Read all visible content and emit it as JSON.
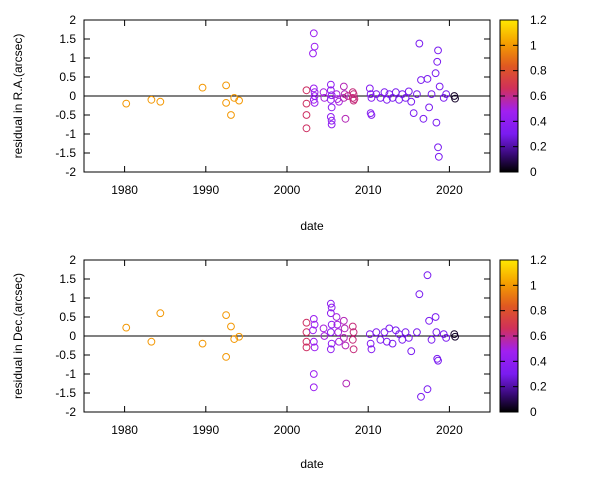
{
  "chart_data": [
    {
      "type": "scatter",
      "xlabel": "date",
      "ylabel": "residual in R.A.(arcsec)",
      "xlim": [
        1975,
        2025
      ],
      "ylim": [
        -2,
        2
      ],
      "xticks": [
        "1980",
        "1990",
        "2000",
        "2010",
        "2020"
      ],
      "yticks": [
        "2",
        "1.5",
        "1",
        "0.5",
        "0",
        "-0.5",
        "-1",
        "-1.5",
        "-2"
      ],
      "colorbar": {
        "range": [
          0,
          1.2
        ],
        "ticks": [
          "1.2",
          "1",
          "0.8",
          "0.6",
          "0.4",
          "0.2",
          "0"
        ]
      },
      "zero_line": true,
      "grid": false,
      "points": [
        {
          "x": 1980.2,
          "y": -0.2,
          "c": 1.0
        },
        {
          "x": 1983.3,
          "y": -0.1,
          "c": 1.0
        },
        {
          "x": 1984.4,
          "y": -0.15,
          "c": 1.0
        },
        {
          "x": 1989.6,
          "y": 0.22,
          "c": 1.0
        },
        {
          "x": 1992.5,
          "y": 0.28,
          "c": 1.0
        },
        {
          "x": 1992.5,
          "y": -0.18,
          "c": 1.0
        },
        {
          "x": 1993.1,
          "y": -0.5,
          "c": 1.0
        },
        {
          "x": 1993.5,
          "y": -0.05,
          "c": 1.0
        },
        {
          "x": 1994.1,
          "y": -0.12,
          "c": 1.0
        },
        {
          "x": 2002.4,
          "y": 0.15,
          "c": 0.65
        },
        {
          "x": 2002.4,
          "y": -0.2,
          "c": 0.65
        },
        {
          "x": 2002.4,
          "y": -0.5,
          "c": 0.65
        },
        {
          "x": 2002.4,
          "y": -0.85,
          "c": 0.65
        },
        {
          "x": 2003.3,
          "y": 1.65,
          "c": 0.45
        },
        {
          "x": 2003.4,
          "y": 1.3,
          "c": 0.45
        },
        {
          "x": 2003.2,
          "y": 1.12,
          "c": 0.45
        },
        {
          "x": 2003.3,
          "y": 0.2,
          "c": 0.45
        },
        {
          "x": 2003.4,
          "y": 0.1,
          "c": 0.45
        },
        {
          "x": 2003.4,
          "y": 0.0,
          "c": 0.45
        },
        {
          "x": 2003.3,
          "y": -0.1,
          "c": 0.45
        },
        {
          "x": 2003.4,
          "y": -0.18,
          "c": 0.45
        },
        {
          "x": 2004.5,
          "y": 0.1,
          "c": 0.5
        },
        {
          "x": 2004.6,
          "y": -0.05,
          "c": 0.5
        },
        {
          "x": 2005.4,
          "y": 0.3,
          "c": 0.4
        },
        {
          "x": 2005.4,
          "y": 0.15,
          "c": 0.4
        },
        {
          "x": 2005.5,
          "y": 0.02,
          "c": 0.4
        },
        {
          "x": 2005.4,
          "y": -0.1,
          "c": 0.4
        },
        {
          "x": 2005.5,
          "y": -0.3,
          "c": 0.4
        },
        {
          "x": 2005.4,
          "y": -0.55,
          "c": 0.4
        },
        {
          "x": 2005.5,
          "y": -0.65,
          "c": 0.4
        },
        {
          "x": 2005.5,
          "y": -0.75,
          "c": 0.4
        },
        {
          "x": 2006.1,
          "y": 0.05,
          "c": 0.5
        },
        {
          "x": 2006.2,
          "y": -0.08,
          "c": 0.5
        },
        {
          "x": 2006.4,
          "y": -0.15,
          "c": 0.5
        },
        {
          "x": 2007.0,
          "y": 0.25,
          "c": 0.55
        },
        {
          "x": 2007.1,
          "y": 0.05,
          "c": 0.55
        },
        {
          "x": 2007.0,
          "y": -0.05,
          "c": 0.55
        },
        {
          "x": 2007.2,
          "y": -0.6,
          "c": 0.55
        },
        {
          "x": 2007.5,
          "y": 0.0,
          "c": 0.6
        },
        {
          "x": 2008.1,
          "y": 0.1,
          "c": 0.62
        },
        {
          "x": 2008.2,
          "y": 0.05,
          "c": 0.62
        },
        {
          "x": 2008.1,
          "y": -0.05,
          "c": 0.62
        },
        {
          "x": 2008.2,
          "y": -0.12,
          "c": 0.62
        },
        {
          "x": 2008.3,
          "y": -0.08,
          "c": 0.62
        },
        {
          "x": 2010.2,
          "y": 0.2,
          "c": 0.35
        },
        {
          "x": 2010.3,
          "y": 0.05,
          "c": 0.35
        },
        {
          "x": 2010.4,
          "y": -0.05,
          "c": 0.35
        },
        {
          "x": 2010.3,
          "y": -0.45,
          "c": 0.35
        },
        {
          "x": 2010.4,
          "y": -0.5,
          "c": 0.35
        },
        {
          "x": 2011.0,
          "y": 0.05,
          "c": 0.33
        },
        {
          "x": 2011.5,
          "y": -0.05,
          "c": 0.33
        },
        {
          "x": 2012.0,
          "y": 0.1,
          "c": 0.32
        },
        {
          "x": 2012.3,
          "y": -0.1,
          "c": 0.32
        },
        {
          "x": 2012.6,
          "y": 0.05,
          "c": 0.32
        },
        {
          "x": 2013.0,
          "y": -0.05,
          "c": 0.3
        },
        {
          "x": 2013.4,
          "y": 0.1,
          "c": 0.3
        },
        {
          "x": 2013.8,
          "y": -0.1,
          "c": 0.3
        },
        {
          "x": 2014.2,
          "y": 0.05,
          "c": 0.3
        },
        {
          "x": 2014.6,
          "y": -0.05,
          "c": 0.3
        },
        {
          "x": 2015.0,
          "y": 0.12,
          "c": 0.3
        },
        {
          "x": 2015.3,
          "y": -0.15,
          "c": 0.3
        },
        {
          "x": 2015.6,
          "y": -0.45,
          "c": 0.3
        },
        {
          "x": 2016.0,
          "y": 0.05,
          "c": 0.3
        },
        {
          "x": 2016.3,
          "y": 1.38,
          "c": 0.3
        },
        {
          "x": 2016.5,
          "y": 0.42,
          "c": 0.3
        },
        {
          "x": 2016.8,
          "y": -0.6,
          "c": 0.3
        },
        {
          "x": 2017.3,
          "y": 0.45,
          "c": 0.3
        },
        {
          "x": 2017.5,
          "y": -0.3,
          "c": 0.3
        },
        {
          "x": 2017.8,
          "y": 0.05,
          "c": 0.3
        },
        {
          "x": 2018.3,
          "y": 0.6,
          "c": 0.3
        },
        {
          "x": 2018.5,
          "y": 0.9,
          "c": 0.3
        },
        {
          "x": 2018.6,
          "y": 1.2,
          "c": 0.3
        },
        {
          "x": 2018.8,
          "y": 0.25,
          "c": 0.3
        },
        {
          "x": 2018.4,
          "y": -0.7,
          "c": 0.3
        },
        {
          "x": 2018.6,
          "y": -1.35,
          "c": 0.3
        },
        {
          "x": 2018.7,
          "y": -1.6,
          "c": 0.3
        },
        {
          "x": 2019.3,
          "y": -0.05,
          "c": 0.3
        },
        {
          "x": 2019.6,
          "y": 0.05,
          "c": 0.3
        },
        {
          "x": 2020.6,
          "y": 0.0,
          "c": 0.05
        },
        {
          "x": 2020.7,
          "y": -0.07,
          "c": 0.05
        }
      ]
    },
    {
      "type": "scatter",
      "xlabel": "date",
      "ylabel": "residual in Dec.(arcsec)",
      "xlim": [
        1975,
        2025
      ],
      "ylim": [
        -2,
        2
      ],
      "xticks": [
        "1980",
        "1990",
        "2000",
        "2010",
        "2020"
      ],
      "yticks": [
        "2",
        "1.5",
        "1",
        "0.5",
        "0",
        "-0.5",
        "-1",
        "-1.5",
        "-2"
      ],
      "colorbar": {
        "range": [
          0,
          1.2
        ],
        "ticks": [
          "1.2",
          "1",
          "0.8",
          "0.6",
          "0.4",
          "0.2",
          "0"
        ]
      },
      "zero_line": true,
      "grid": false,
      "points": [
        {
          "x": 1980.2,
          "y": 0.22,
          "c": 1.0
        },
        {
          "x": 1983.3,
          "y": -0.15,
          "c": 1.0
        },
        {
          "x": 1984.4,
          "y": 0.6,
          "c": 1.0
        },
        {
          "x": 1989.6,
          "y": -0.2,
          "c": 1.0
        },
        {
          "x": 1992.5,
          "y": 0.55,
          "c": 1.0
        },
        {
          "x": 1992.5,
          "y": -0.55,
          "c": 1.0
        },
        {
          "x": 1993.1,
          "y": 0.25,
          "c": 1.0
        },
        {
          "x": 1993.5,
          "y": -0.08,
          "c": 1.0
        },
        {
          "x": 1994.1,
          "y": -0.02,
          "c": 1.0
        },
        {
          "x": 2002.4,
          "y": 0.35,
          "c": 0.65
        },
        {
          "x": 2002.4,
          "y": 0.1,
          "c": 0.65
        },
        {
          "x": 2002.4,
          "y": -0.15,
          "c": 0.65
        },
        {
          "x": 2002.4,
          "y": -0.3,
          "c": 0.65
        },
        {
          "x": 2003.3,
          "y": 0.45,
          "c": 0.45
        },
        {
          "x": 2003.4,
          "y": 0.3,
          "c": 0.45
        },
        {
          "x": 2003.2,
          "y": 0.15,
          "c": 0.45
        },
        {
          "x": 2003.3,
          "y": -0.15,
          "c": 0.45
        },
        {
          "x": 2003.4,
          "y": -0.3,
          "c": 0.45
        },
        {
          "x": 2003.3,
          "y": -1.0,
          "c": 0.45
        },
        {
          "x": 2003.3,
          "y": -1.35,
          "c": 0.45
        },
        {
          "x": 2004.5,
          "y": 0.2,
          "c": 0.5
        },
        {
          "x": 2004.6,
          "y": 0.0,
          "c": 0.5
        },
        {
          "x": 2005.4,
          "y": 0.85,
          "c": 0.4
        },
        {
          "x": 2005.5,
          "y": 0.75,
          "c": 0.4
        },
        {
          "x": 2005.4,
          "y": 0.6,
          "c": 0.4
        },
        {
          "x": 2005.5,
          "y": 0.3,
          "c": 0.4
        },
        {
          "x": 2005.4,
          "y": 0.1,
          "c": 0.4
        },
        {
          "x": 2005.5,
          "y": -0.2,
          "c": 0.4
        },
        {
          "x": 2005.4,
          "y": -0.35,
          "c": 0.4
        },
        {
          "x": 2006.1,
          "y": 0.5,
          "c": 0.5
        },
        {
          "x": 2006.2,
          "y": 0.3,
          "c": 0.5
        },
        {
          "x": 2006.3,
          "y": 0.1,
          "c": 0.5
        },
        {
          "x": 2006.4,
          "y": -0.15,
          "c": 0.5
        },
        {
          "x": 2007.0,
          "y": 0.4,
          "c": 0.55
        },
        {
          "x": 2007.1,
          "y": 0.2,
          "c": 0.55
        },
        {
          "x": 2007.0,
          "y": -0.05,
          "c": 0.55
        },
        {
          "x": 2007.2,
          "y": -0.25,
          "c": 0.55
        },
        {
          "x": 2007.3,
          "y": -1.25,
          "c": 0.55
        },
        {
          "x": 2008.1,
          "y": 0.25,
          "c": 0.62
        },
        {
          "x": 2008.2,
          "y": 0.1,
          "c": 0.62
        },
        {
          "x": 2008.1,
          "y": -0.1,
          "c": 0.62
        },
        {
          "x": 2008.2,
          "y": -0.35,
          "c": 0.62
        },
        {
          "x": 2010.2,
          "y": 0.05,
          "c": 0.35
        },
        {
          "x": 2010.3,
          "y": -0.2,
          "c": 0.35
        },
        {
          "x": 2010.4,
          "y": -0.35,
          "c": 0.35
        },
        {
          "x": 2011.0,
          "y": 0.1,
          "c": 0.33
        },
        {
          "x": 2011.5,
          "y": -0.1,
          "c": 0.33
        },
        {
          "x": 2012.0,
          "y": 0.1,
          "c": 0.32
        },
        {
          "x": 2012.3,
          "y": -0.15,
          "c": 0.32
        },
        {
          "x": 2012.6,
          "y": 0.2,
          "c": 0.32
        },
        {
          "x": 2013.0,
          "y": -0.2,
          "c": 0.3
        },
        {
          "x": 2013.4,
          "y": 0.15,
          "c": 0.3
        },
        {
          "x": 2013.8,
          "y": 0.05,
          "c": 0.3
        },
        {
          "x": 2014.2,
          "y": -0.1,
          "c": 0.3
        },
        {
          "x": 2014.6,
          "y": 0.1,
          "c": 0.3
        },
        {
          "x": 2015.0,
          "y": -0.05,
          "c": 0.3
        },
        {
          "x": 2015.3,
          "y": -0.4,
          "c": 0.3
        },
        {
          "x": 2016.0,
          "y": 0.1,
          "c": 0.3
        },
        {
          "x": 2016.3,
          "y": 1.1,
          "c": 0.3
        },
        {
          "x": 2016.5,
          "y": -1.6,
          "c": 0.3
        },
        {
          "x": 2017.3,
          "y": 1.6,
          "c": 0.3
        },
        {
          "x": 2017.3,
          "y": -1.4,
          "c": 0.3
        },
        {
          "x": 2017.5,
          "y": 0.4,
          "c": 0.3
        },
        {
          "x": 2017.8,
          "y": -0.1,
          "c": 0.3
        },
        {
          "x": 2018.3,
          "y": 0.5,
          "c": 0.3
        },
        {
          "x": 2018.4,
          "y": 0.1,
          "c": 0.3
        },
        {
          "x": 2018.5,
          "y": -0.6,
          "c": 0.3
        },
        {
          "x": 2018.6,
          "y": -0.65,
          "c": 0.3
        },
        {
          "x": 2019.3,
          "y": 0.05,
          "c": 0.3
        },
        {
          "x": 2019.6,
          "y": -0.05,
          "c": 0.3
        },
        {
          "x": 2020.6,
          "y": 0.05,
          "c": 0.05
        },
        {
          "x": 2020.7,
          "y": -0.02,
          "c": 0.05
        }
      ]
    }
  ]
}
